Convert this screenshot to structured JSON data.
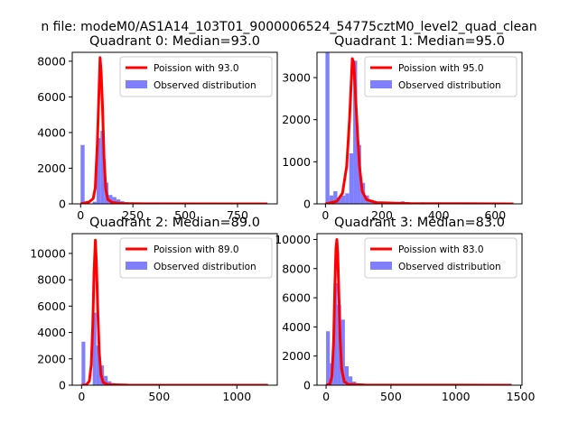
{
  "chart_data": {
    "suptitle": "n file: modeM0/AS1A14_103T01_9000006524_54775cztM0_level2_quad_clean",
    "colors": {
      "poisson": "#ff0000",
      "observed": "#8080ff",
      "axis": "#000000"
    },
    "panels": [
      {
        "type": "bar",
        "title": "Quadrant 0: Median=93.0",
        "legend_position": "upper right",
        "legend": [
          "Poission with 93.0",
          "Observed distribution"
        ],
        "xlim": [
          -40,
          940
        ],
        "ylim": [
          0,
          8500
        ],
        "xticks": [
          {
            "v": 0,
            "l": "0"
          },
          {
            "v": 250,
            "l": "250"
          },
          {
            "v": 500,
            "l": "500"
          },
          {
            "v": 750,
            "l": "750"
          }
        ],
        "yticks": [
          {
            "v": 0,
            "l": "0"
          },
          {
            "v": 2000,
            "l": "2000"
          },
          {
            "v": 4000,
            "l": "4000"
          },
          {
            "v": 6000,
            "l": "6000"
          },
          {
            "v": 8000,
            "l": "8000"
          }
        ],
        "hist_bins": [
          [
            0,
            3300
          ],
          [
            19,
            0
          ],
          [
            38,
            0
          ],
          [
            57,
            120
          ],
          [
            76,
            3700
          ],
          [
            95,
            4100
          ],
          [
            114,
            1200
          ],
          [
            133,
            500
          ],
          [
            152,
            380
          ],
          [
            171,
            250
          ],
          [
            190,
            150
          ],
          [
            209,
            100
          ],
          [
            228,
            70
          ],
          [
            247,
            50
          ],
          [
            266,
            40
          ],
          [
            285,
            30
          ],
          [
            304,
            25
          ],
          [
            323,
            20
          ],
          [
            342,
            15
          ],
          [
            361,
            12
          ],
          [
            380,
            10
          ],
          [
            399,
            8
          ],
          [
            418,
            6
          ],
          [
            437,
            5
          ],
          [
            456,
            5
          ],
          [
            475,
            4
          ],
          [
            494,
            4
          ],
          [
            513,
            3
          ],
          [
            532,
            3
          ],
          [
            551,
            3
          ],
          [
            570,
            2
          ],
          [
            589,
            2
          ],
          [
            608,
            2
          ],
          [
            627,
            2
          ],
          [
            646,
            2
          ],
          [
            665,
            2
          ],
          [
            684,
            1
          ],
          [
            703,
            1
          ],
          [
            722,
            1
          ],
          [
            741,
            1
          ],
          [
            760,
            1
          ],
          [
            779,
            1
          ],
          [
            798,
            1
          ],
          [
            817,
            1
          ],
          [
            836,
            1
          ],
          [
            855,
            1
          ],
          [
            874,
            1
          ]
        ],
        "bin_width": 19,
        "poisson_curve": [
          [
            0,
            0
          ],
          [
            20,
            50
          ],
          [
            40,
            100
          ],
          [
            60,
            300
          ],
          [
            70,
            900
          ],
          [
            80,
            3400
          ],
          [
            88,
            6300
          ],
          [
            93,
            8200
          ],
          [
            98,
            7400
          ],
          [
            104,
            5600
          ],
          [
            112,
            2600
          ],
          [
            120,
            800
          ],
          [
            130,
            250
          ],
          [
            150,
            80
          ],
          [
            200,
            20
          ],
          [
            300,
            5
          ],
          [
            893,
            0
          ]
        ]
      },
      {
        "type": "bar",
        "title": "Quadrant 1: Median=95.0",
        "legend_position": "upper right",
        "legend": [
          "Poission with 95.0",
          "Observed distribution"
        ],
        "xlim": [
          -30,
          695
        ],
        "ylim": [
          0,
          3600
        ],
        "xticks": [
          {
            "v": 0,
            "l": "0"
          },
          {
            "v": 200,
            "l": "200"
          },
          {
            "v": 400,
            "l": "400"
          },
          {
            "v": 600,
            "l": "600"
          }
        ],
        "yticks": [
          {
            "v": 0,
            "l": "0"
          },
          {
            "v": 1000,
            "l": "1000"
          },
          {
            "v": 2000,
            "l": "2000"
          },
          {
            "v": 3000,
            "l": "3000"
          }
        ],
        "hist_bins": [
          [
            0,
            3600
          ],
          [
            14,
            200
          ],
          [
            28,
            300
          ],
          [
            42,
            150
          ],
          [
            56,
            200
          ],
          [
            70,
            250
          ],
          [
            84,
            1200
          ],
          [
            98,
            3400
          ],
          [
            112,
            1400
          ],
          [
            126,
            500
          ],
          [
            140,
            200
          ],
          [
            154,
            90
          ],
          [
            168,
            60
          ],
          [
            182,
            50
          ],
          [
            196,
            40
          ],
          [
            210,
            35
          ],
          [
            224,
            30
          ],
          [
            238,
            25
          ],
          [
            252,
            25
          ],
          [
            266,
            60
          ],
          [
            280,
            20
          ],
          [
            294,
            25
          ],
          [
            308,
            15
          ],
          [
            322,
            15
          ],
          [
            336,
            35
          ],
          [
            350,
            12
          ],
          [
            364,
            10
          ],
          [
            378,
            8
          ],
          [
            392,
            8
          ],
          [
            406,
            7
          ],
          [
            420,
            6
          ],
          [
            434,
            6
          ],
          [
            448,
            5
          ],
          [
            462,
            5
          ],
          [
            476,
            4
          ],
          [
            490,
            4
          ],
          [
            504,
            3
          ],
          [
            518,
            3
          ],
          [
            532,
            3
          ],
          [
            546,
            2
          ],
          [
            560,
            2
          ],
          [
            574,
            2
          ],
          [
            588,
            2
          ],
          [
            602,
            2
          ],
          [
            616,
            1
          ],
          [
            630,
            1
          ],
          [
            644,
            1
          ],
          [
            658,
            1
          ]
        ],
        "bin_width": 14,
        "poisson_curve": [
          [
            0,
            0
          ],
          [
            20,
            30
          ],
          [
            40,
            60
          ],
          [
            60,
            250
          ],
          [
            75,
            900
          ],
          [
            85,
            2000
          ],
          [
            95,
            3450
          ],
          [
            100,
            3350
          ],
          [
            106,
            2600
          ],
          [
            113,
            1700
          ],
          [
            120,
            900
          ],
          [
            130,
            300
          ],
          [
            145,
            100
          ],
          [
            180,
            30
          ],
          [
            300,
            8
          ],
          [
            665,
            0
          ]
        ]
      },
      {
        "type": "bar",
        "title": "Quadrant 2: Median=89.0",
        "legend_position": "upper right",
        "legend": [
          "Poission with 89.0",
          "Observed distribution"
        ],
        "xlim": [
          -60,
          1260
        ],
        "ylim": [
          0,
          11500
        ],
        "xticks": [
          {
            "v": 0,
            "l": "0"
          },
          {
            "v": 500,
            "l": "500"
          },
          {
            "v": 1000,
            "l": "1000"
          }
        ],
        "yticks": [
          {
            "v": 0,
            "l": "0"
          },
          {
            "v": 2000,
            "l": "2000"
          },
          {
            "v": 4000,
            "l": "4000"
          },
          {
            "v": 6000,
            "l": "6000"
          },
          {
            "v": 8000,
            "l": "8000"
          },
          {
            "v": 10000,
            "l": "10000"
          }
        ],
        "hist_bins": [
          [
            0,
            3300
          ],
          [
            24,
            0
          ],
          [
            48,
            0
          ],
          [
            72,
            5500
          ],
          [
            96,
            3000
          ],
          [
            120,
            1500
          ],
          [
            144,
            700
          ],
          [
            168,
            300
          ],
          [
            192,
            150
          ],
          [
            216,
            90
          ],
          [
            240,
            60
          ],
          [
            264,
            40
          ],
          [
            288,
            30
          ],
          [
            312,
            25
          ],
          [
            336,
            20
          ],
          [
            360,
            15
          ],
          [
            384,
            12
          ],
          [
            408,
            10
          ],
          [
            432,
            8
          ],
          [
            456,
            6
          ],
          [
            480,
            5
          ],
          [
            504,
            5
          ],
          [
            528,
            4
          ],
          [
            552,
            4
          ],
          [
            576,
            3
          ],
          [
            600,
            3
          ],
          [
            624,
            3
          ],
          [
            648,
            2
          ],
          [
            672,
            2
          ],
          [
            696,
            2
          ],
          [
            720,
            2
          ],
          [
            744,
            2
          ],
          [
            768,
            1
          ],
          [
            792,
            1
          ],
          [
            816,
            1
          ],
          [
            840,
            1
          ],
          [
            864,
            1
          ],
          [
            888,
            1
          ],
          [
            912,
            1
          ],
          [
            936,
            1
          ],
          [
            960,
            1
          ],
          [
            984,
            1
          ],
          [
            1008,
            1
          ],
          [
            1032,
            1
          ],
          [
            1056,
            1
          ],
          [
            1080,
            1
          ],
          [
            1104,
            1
          ],
          [
            1128,
            1
          ],
          [
            1152,
            1
          ],
          [
            1176,
            1
          ]
        ],
        "bin_width": 24,
        "poisson_curve": [
          [
            0,
            0
          ],
          [
            30,
            30
          ],
          [
            50,
            300
          ],
          [
            62,
            1500
          ],
          [
            72,
            4500
          ],
          [
            80,
            8500
          ],
          [
            89,
            11000
          ],
          [
            96,
            9200
          ],
          [
            104,
            5800
          ],
          [
            114,
            2500
          ],
          [
            125,
            800
          ],
          [
            140,
            200
          ],
          [
            170,
            50
          ],
          [
            300,
            8
          ],
          [
            1200,
            0
          ]
        ]
      },
      {
        "type": "bar",
        "title": "Quadrant 3: Median=83.0",
        "legend_position": "upper right",
        "legend": [
          "Poission with 83.0",
          "Observed distribution"
        ],
        "xlim": [
          -70,
          1510
        ],
        "ylim": [
          0,
          10400
        ],
        "xticks": [
          {
            "v": 0,
            "l": "0"
          },
          {
            "v": 500,
            "l": "500"
          },
          {
            "v": 1000,
            "l": "1000"
          },
          {
            "v": 1500,
            "l": "1500"
          }
        ],
        "yticks": [
          {
            "v": 0,
            "l": "0"
          },
          {
            "v": 2000,
            "l": "2000"
          },
          {
            "v": 4000,
            "l": "4000"
          },
          {
            "v": 6000,
            "l": "6000"
          },
          {
            "v": 8000,
            "l": "8000"
          },
          {
            "v": 10000,
            "l": "10000"
          }
        ],
        "hist_bins": [
          [
            0,
            3700
          ],
          [
            29,
            1500
          ],
          [
            58,
            7000
          ],
          [
            87,
            5500
          ],
          [
            116,
            4500
          ],
          [
            145,
            1300
          ],
          [
            174,
            600
          ],
          [
            203,
            250
          ],
          [
            232,
            120
          ],
          [
            261,
            70
          ],
          [
            290,
            40
          ],
          [
            319,
            30
          ],
          [
            348,
            25
          ],
          [
            377,
            20
          ],
          [
            406,
            15
          ],
          [
            435,
            12
          ],
          [
            464,
            10
          ],
          [
            493,
            8
          ],
          [
            522,
            6
          ],
          [
            551,
            5
          ],
          [
            580,
            4
          ],
          [
            609,
            4
          ],
          [
            638,
            3
          ],
          [
            667,
            3
          ],
          [
            696,
            3
          ],
          [
            725,
            2
          ],
          [
            754,
            2
          ],
          [
            783,
            2
          ],
          [
            812,
            2
          ],
          [
            841,
            2
          ],
          [
            870,
            1
          ],
          [
            899,
            1
          ],
          [
            928,
            1
          ],
          [
            957,
            1
          ],
          [
            986,
            1
          ],
          [
            1015,
            1
          ],
          [
            1044,
            1
          ],
          [
            1073,
            1
          ],
          [
            1102,
            1
          ],
          [
            1131,
            1
          ],
          [
            1160,
            1
          ],
          [
            1189,
            1
          ],
          [
            1218,
            1
          ],
          [
            1247,
            1
          ],
          [
            1276,
            1
          ],
          [
            1305,
            1
          ],
          [
            1334,
            1
          ],
          [
            1363,
            1
          ],
          [
            1392,
            1
          ],
          [
            1421,
            1
          ]
        ],
        "bin_width": 29,
        "poisson_curve": [
          [
            0,
            0
          ],
          [
            30,
            100
          ],
          [
            45,
            600
          ],
          [
            58,
            3000
          ],
          [
            68,
            6800
          ],
          [
            76,
            9400
          ],
          [
            83,
            10000
          ],
          [
            90,
            9000
          ],
          [
            98,
            6500
          ],
          [
            108,
            3200
          ],
          [
            120,
            1100
          ],
          [
            140,
            250
          ],
          [
            170,
            60
          ],
          [
            300,
            10
          ],
          [
            1430,
            0
          ]
        ]
      }
    ]
  }
}
